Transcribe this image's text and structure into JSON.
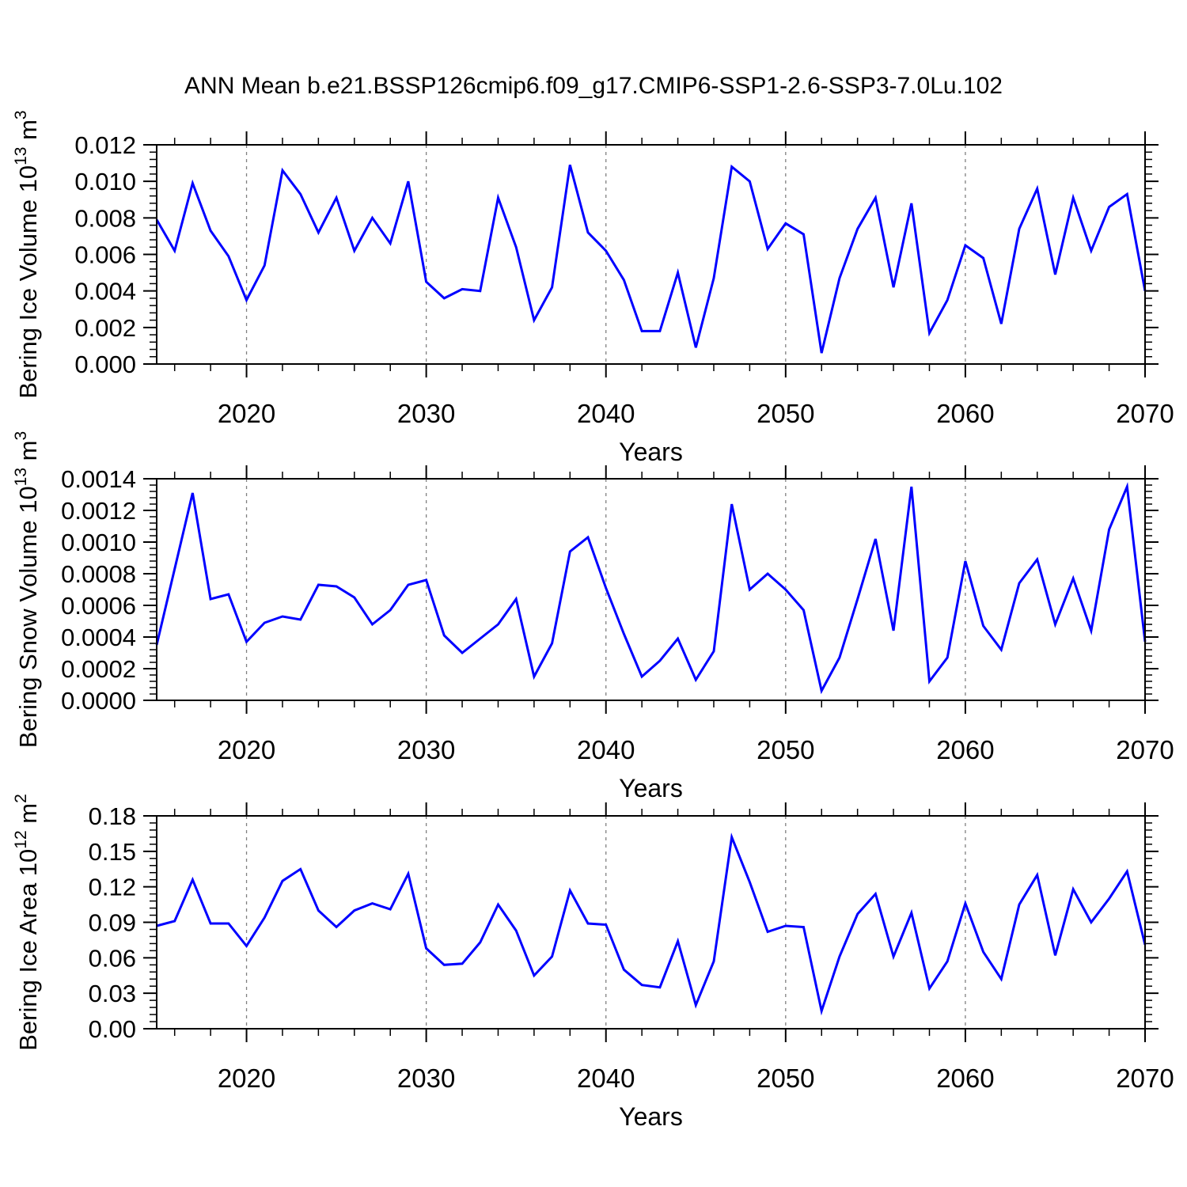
{
  "title": "ANN Mean b.e21.BSSP126cmip6.f09_g17.CMIP6-SSP1-2.6-SSP3-7.0Lu.102",
  "colors": {
    "line": "#0000ff",
    "axis": "#000000",
    "grid": "#808080",
    "background": "#ffffff",
    "text": "#000000"
  },
  "x_axis": {
    "label": "Years",
    "range": [
      2015,
      2070
    ],
    "major_ticks": [
      2020,
      2030,
      2040,
      2050,
      2060,
      2070
    ],
    "minor_step": 2,
    "grid_years": [
      2020,
      2030,
      2040,
      2050,
      2060
    ]
  },
  "years": [
    2015,
    2016,
    2017,
    2018,
    2019,
    2020,
    2021,
    2022,
    2023,
    2024,
    2025,
    2026,
    2027,
    2028,
    2029,
    2030,
    2031,
    2032,
    2033,
    2034,
    2035,
    2036,
    2037,
    2038,
    2039,
    2040,
    2041,
    2042,
    2043,
    2044,
    2045,
    2046,
    2047,
    2048,
    2049,
    2050,
    2051,
    2052,
    2053,
    2054,
    2055,
    2056,
    2057,
    2058,
    2059,
    2060,
    2061,
    2062,
    2063,
    2064,
    2065,
    2066,
    2067,
    2068,
    2069,
    2070
  ],
  "chart_data": [
    {
      "type": "line",
      "id": "bering-ice-volume",
      "ylabel": "Bering Ice Volume 10^13 m^3",
      "ylabel_parts": [
        {
          "t": "Bering Ice Volume 10"
        },
        {
          "t": "13",
          "sup": true
        },
        {
          "t": " m"
        },
        {
          "t": "3",
          "sup": true
        }
      ],
      "xlabel": "Years",
      "ylim": [
        0,
        0.012
      ],
      "ytick_step": 0.002,
      "yminor_step": 0.0004,
      "ytick_decimals": 3,
      "grid": "x-dashed",
      "legend": "none",
      "values": [
        0.0079,
        0.0062,
        0.0099,
        0.0073,
        0.0059,
        0.0035,
        0.0054,
        0.0106,
        0.0093,
        0.0072,
        0.0091,
        0.0062,
        0.008,
        0.0066,
        0.01,
        0.0045,
        0.0036,
        0.0041,
        0.004,
        0.0091,
        0.0064,
        0.0024,
        0.0042,
        0.0109,
        0.0072,
        0.0062,
        0.0046,
        0.0018,
        0.0018,
        0.005,
        0.0009,
        0.0047,
        0.0108,
        0.01,
        0.0063,
        0.0077,
        0.0071,
        0.0006,
        0.0047,
        0.0074,
        0.0091,
        0.0042,
        0.0088,
        0.0017,
        0.0035,
        0.0065,
        0.0058,
        0.0022,
        0.0074,
        0.0096,
        0.0049,
        0.0091,
        0.0062,
        0.0086,
        0.0093,
        0.004
      ]
    },
    {
      "type": "line",
      "id": "bering-snow-volume",
      "ylabel": "Bering Snow Volume 10^13 m^3",
      "ylabel_parts": [
        {
          "t": "Bering Snow Volume 10"
        },
        {
          "t": "13",
          "sup": true
        },
        {
          "t": " m"
        },
        {
          "t": "3",
          "sup": true
        }
      ],
      "xlabel": "Years",
      "ylim": [
        0,
        0.0014
      ],
      "ytick_step": 0.0002,
      "yminor_step": 4e-05,
      "ytick_decimals": 4,
      "grid": "x-dashed",
      "legend": "none",
      "values": [
        0.00035,
        0.00083,
        0.00131,
        0.00064,
        0.00067,
        0.00037,
        0.00049,
        0.00053,
        0.00051,
        0.00073,
        0.00072,
        0.00065,
        0.00048,
        0.00057,
        0.00073,
        0.00076,
        0.00041,
        0.0003,
        0.00039,
        0.00048,
        0.00064,
        0.00015,
        0.00036,
        0.00094,
        0.00103,
        0.00071,
        0.00042,
        0.00015,
        0.00025,
        0.00039,
        0.00013,
        0.00031,
        0.00124,
        0.0007,
        0.0008,
        0.0007,
        0.00057,
        6e-05,
        0.00027,
        0.00064,
        0.00102,
        0.00044,
        0.00135,
        0.00012,
        0.00027,
        0.00088,
        0.00047,
        0.00032,
        0.00074,
        0.00089,
        0.00048,
        0.00077,
        0.00044,
        0.00108,
        0.00135,
        0.00037
      ]
    },
    {
      "type": "line",
      "id": "bering-ice-area",
      "ylabel": "Bering Ice Area 10^12 m^2",
      "ylabel_parts": [
        {
          "t": "Bering Ice Area 10"
        },
        {
          "t": "12",
          "sup": true
        },
        {
          "t": " m"
        },
        {
          "t": "2",
          "sup": true
        }
      ],
      "xlabel": "Years",
      "ylim": [
        0,
        0.18
      ],
      "ytick_step": 0.03,
      "yminor_step": 0.006,
      "ytick_decimals": 2,
      "grid": "x-dashed",
      "legend": "none",
      "values": [
        0.087,
        0.091,
        0.126,
        0.089,
        0.089,
        0.07,
        0.094,
        0.125,
        0.135,
        0.1,
        0.086,
        0.1,
        0.106,
        0.101,
        0.131,
        0.068,
        0.054,
        0.055,
        0.073,
        0.105,
        0.083,
        0.045,
        0.061,
        0.117,
        0.089,
        0.088,
        0.05,
        0.037,
        0.035,
        0.074,
        0.02,
        0.057,
        0.162,
        0.124,
        0.082,
        0.087,
        0.086,
        0.015,
        0.061,
        0.097,
        0.114,
        0.061,
        0.098,
        0.034,
        0.057,
        0.106,
        0.065,
        0.042,
        0.105,
        0.13,
        0.062,
        0.118,
        0.09,
        0.11,
        0.133,
        0.071
      ]
    }
  ]
}
